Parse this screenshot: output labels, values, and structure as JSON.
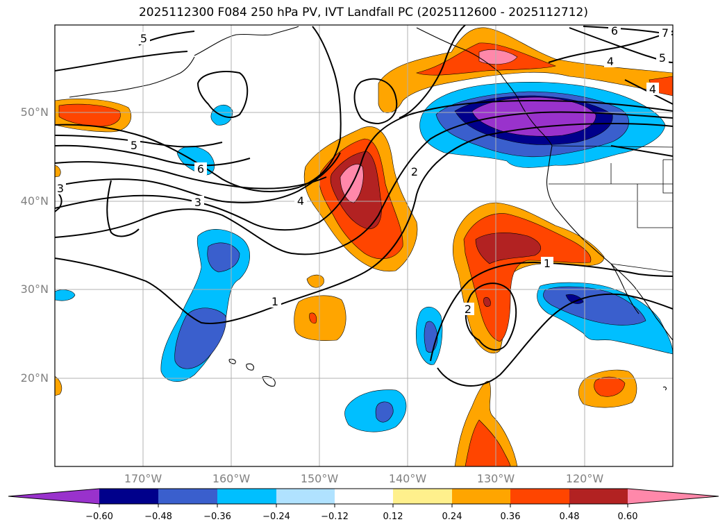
{
  "title": "2025112300 F084 250 hPa PV, IVT Landfall PC (2025112600 - 2025112712)",
  "lat_labels": [
    "50°N",
    "40°N",
    "30°N",
    "20°N"
  ],
  "lon_labels": [
    "170°W",
    "160°W",
    "150°W",
    "140°W",
    "130°W",
    "120°W"
  ],
  "colorbar": {
    "colors": [
      "#9932cc",
      "#00008b",
      "#3a5fcd",
      "#00bfff",
      "#b0e2ff",
      "#ffffff",
      "#fff08c",
      "#ffa500",
      "#ff4500",
      "#b22222",
      "#ff88aa"
    ],
    "tick_labels": [
      "−0.60",
      "−0.48",
      "−0.36",
      "−0.24",
      "−0.12",
      "0.12",
      "0.24",
      "0.36",
      "0.48",
      "0.60"
    ]
  },
  "contour_labels": [
    "5",
    "6",
    "7",
    "4",
    "5",
    "4",
    "5",
    "6",
    "3",
    "3",
    "4",
    "2",
    "1",
    "1",
    "2"
  ],
  "colors": {
    "orange": "#ffa500",
    "red": "#ff4500",
    "darkred": "#b22222",
    "pink": "#ff88aa",
    "cyan": "#00bfff",
    "royal": "#3a5fcd",
    "navy": "#00008b",
    "purple": "#9932cc"
  }
}
